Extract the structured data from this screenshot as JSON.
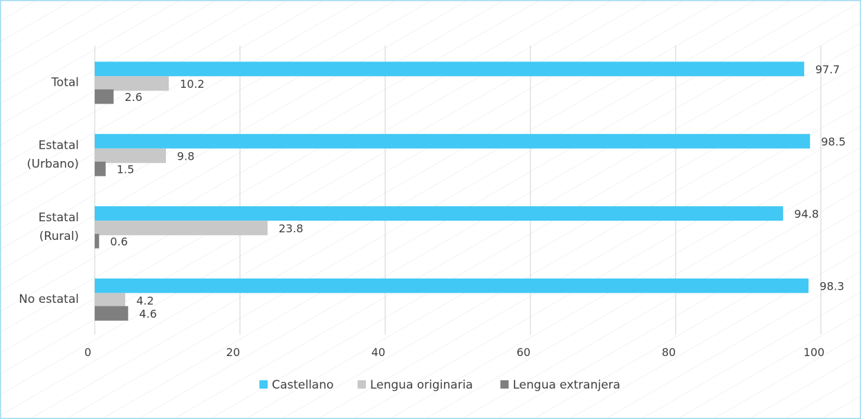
{
  "chart_data": {
    "type": "bar",
    "orientation": "horizontal",
    "categories": [
      [
        "Total"
      ],
      [
        "Estatal",
        "(Urbano)"
      ],
      [
        "Estatal",
        "(Rural)"
      ],
      [
        "No estatal"
      ]
    ],
    "series": [
      {
        "name": "Castellano",
        "color": "#41C8F5",
        "values": [
          97.7,
          98.5,
          94.8,
          98.3
        ]
      },
      {
        "name": "Lengua originaria",
        "color": "#C8C8C8",
        "values": [
          10.2,
          9.8,
          23.8,
          4.2
        ]
      },
      {
        "name": "Lengua extranjera",
        "color": "#7F7F7F",
        "values": [
          2.6,
          1.5,
          0.6,
          4.6
        ]
      }
    ],
    "xlim": [
      0,
      100
    ],
    "x_ticks": [
      "0",
      "20",
      "40",
      "60",
      "80",
      "100"
    ],
    "grid": "vertical",
    "legend": "bottom",
    "title": "",
    "xlabel": "",
    "ylabel": ""
  }
}
